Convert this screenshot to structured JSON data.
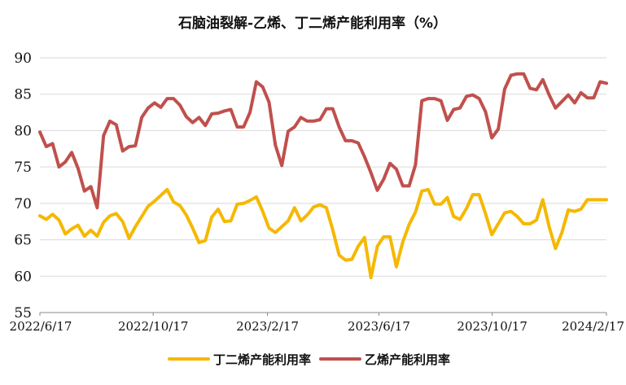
{
  "chart_data": {
    "type": "line",
    "title": "石脑油裂解-乙烯、丁二烯产能利用率（%）",
    "xlabel": "",
    "ylabel": "",
    "ylim": [
      55,
      90
    ],
    "yticks": [
      55,
      60,
      65,
      70,
      75,
      80,
      85,
      90
    ],
    "x_tick_labels": [
      "2022/6/17",
      "2022/10/17",
      "2023/2/17",
      "2023/6/17",
      "2023/10/17",
      "2024/2/17"
    ],
    "x_tick_dates": [
      "2022-06-17",
      "2022-10-17",
      "2023-02-17",
      "2023-06-17",
      "2023-10-17",
      "2024-02-17"
    ],
    "x_range": [
      "2022-06-17",
      "2024-02-17"
    ],
    "grid": "horizontal",
    "legend_position": "bottom",
    "series": [
      {
        "name": "丁二烯产能利用率",
        "color": "#f5b800",
        "values": [
          68.3,
          67.8,
          68.5,
          67.7,
          65.8,
          66.5,
          67.0,
          65.5,
          66.3,
          65.5,
          67.4,
          68.3,
          68.6,
          67.5,
          65.2,
          66.8,
          68.2,
          69.6,
          70.3,
          71.1,
          71.9,
          70.2,
          69.7,
          68.4,
          66.6,
          64.6,
          64.9,
          68.1,
          69.2,
          67.5,
          67.6,
          69.9,
          70.0,
          70.4,
          70.9,
          68.9,
          66.6,
          66.0,
          66.8,
          67.6,
          69.4,
          67.6,
          68.4,
          69.5,
          69.8,
          69.4,
          66.4,
          62.9,
          62.2,
          62.3,
          64.1,
          65.3,
          59.8,
          64.1,
          65.4,
          65.4,
          61.3,
          64.7,
          67.1,
          68.8,
          71.7,
          71.9,
          69.9,
          69.9,
          70.8,
          68.2,
          67.8,
          69.3,
          71.2,
          71.2,
          68.6,
          65.7,
          67.2,
          68.7,
          68.9,
          68.2,
          67.2,
          67.2,
          67.7,
          70.5,
          66.8,
          63.8,
          66.0,
          69.1,
          68.9,
          69.2,
          70.5,
          70.5,
          70.5,
          70.5
        ]
      },
      {
        "name": "乙烯产能利用率",
        "color": "#c0504d",
        "values": [
          79.8,
          77.8,
          78.2,
          75.0,
          75.7,
          77.0,
          74.8,
          71.7,
          72.3,
          69.4,
          79.3,
          81.3,
          80.8,
          77.2,
          77.8,
          77.9,
          81.8,
          83.1,
          83.8,
          83.2,
          84.4,
          84.4,
          83.5,
          81.9,
          81.1,
          81.8,
          80.7,
          82.3,
          82.4,
          82.7,
          82.9,
          80.5,
          80.5,
          82.5,
          86.7,
          86.0,
          83.9,
          78.0,
          75.2,
          79.9,
          80.5,
          81.8,
          81.3,
          81.3,
          81.5,
          83.0,
          83.0,
          80.5,
          78.6,
          78.6,
          78.3,
          76.4,
          74.2,
          71.8,
          73.3,
          75.5,
          74.7,
          72.4,
          72.4,
          75.3,
          84.1,
          84.4,
          84.4,
          84.1,
          81.4,
          82.9,
          83.1,
          84.7,
          84.9,
          84.4,
          82.6,
          79.0,
          80.2,
          85.7,
          87.6,
          87.8,
          87.8,
          85.8,
          85.6,
          87.0,
          84.9,
          83.1,
          84.0,
          84.9,
          83.8,
          85.2,
          84.5,
          84.5,
          86.7,
          86.5
        ]
      }
    ]
  }
}
